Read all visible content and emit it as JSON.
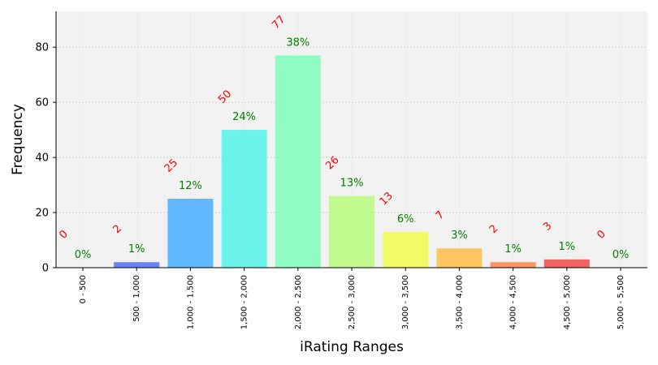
{
  "chart_data": {
    "type": "bar",
    "xlabel": "iRating Ranges",
    "ylabel": "Frequency",
    "ylim": [
      0,
      93
    ],
    "yticks": [
      0,
      20,
      40,
      60,
      80
    ],
    "grid": true,
    "categories": [
      "0 - 500",
      "500 - 1,000",
      "1,000 - 1,500",
      "1,500 - 2,000",
      "2,000 - 2,500",
      "2,500 - 3,000",
      "3,000 - 3,500",
      "3,500 - 4,000",
      "4,000 - 4,500",
      "4,500 - 5,000",
      "5,000 - 5,500"
    ],
    "values": [
      0,
      2,
      25,
      50,
      77,
      26,
      13,
      7,
      2,
      3,
      0
    ],
    "percent_labels": [
      "0%",
      "1%",
      "12%",
      "24%",
      "38%",
      "13%",
      "6%",
      "3%",
      "1%",
      "1%",
      "0%"
    ],
    "colors": [
      "#2222ff",
      "#5070f8",
      "#48aeff",
      "#52f2ea",
      "#80fdbc",
      "#b8fc7c",
      "#eefb4c",
      "#ffbe48",
      "#ff8448",
      "#f04a4a",
      "#cc1010"
    ]
  }
}
